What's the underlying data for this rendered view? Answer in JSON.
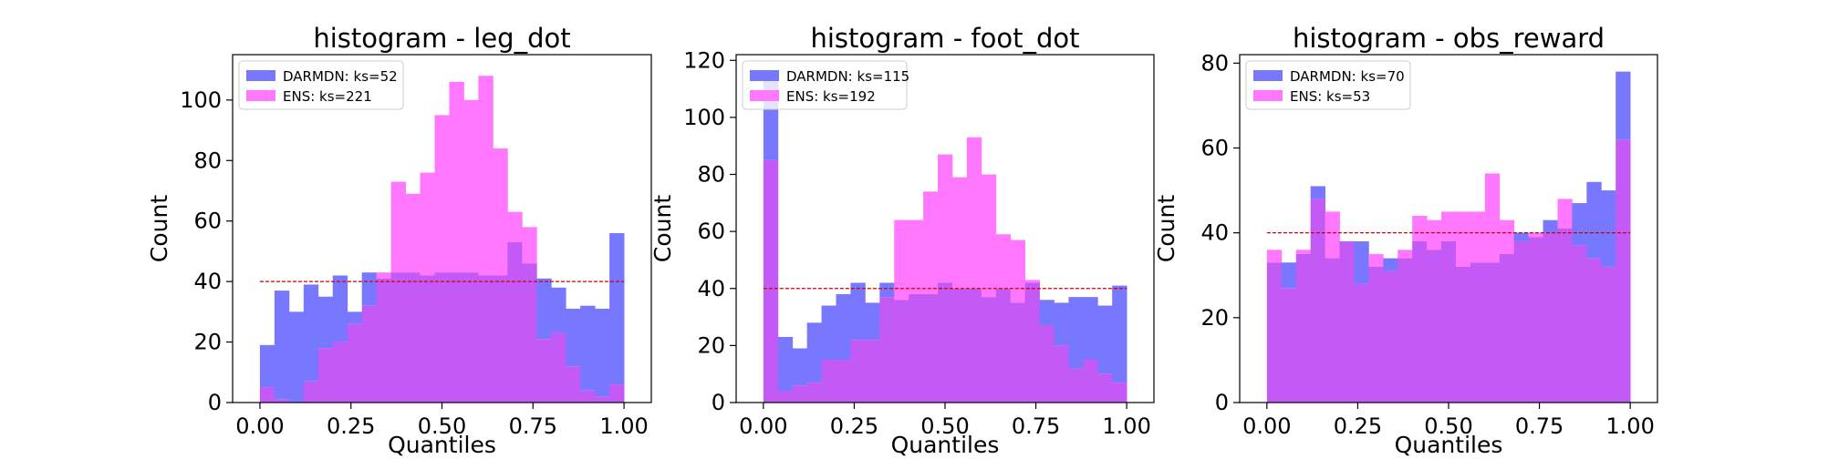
{
  "colors": {
    "darmdn": "#7878ff",
    "ens": "#ff78ff",
    "overlap": "#c35af5",
    "refline": "#cc0000"
  },
  "chart_data": [
    {
      "type": "bar",
      "title": "histogram - leg_dot",
      "xlabel": "Quantiles",
      "ylabel": "Count",
      "xlim": [
        -0.075,
        1.075
      ],
      "ylim": [
        0,
        115
      ],
      "xticks": [
        "0.00",
        "0.25",
        "0.50",
        "0.75",
        "1.00"
      ],
      "xtick_values": [
        0,
        0.25,
        0.5,
        0.75,
        1.0
      ],
      "yticks": [
        "0",
        "20",
        "40",
        "60",
        "80",
        "100"
      ],
      "ytick_values": [
        0,
        20,
        40,
        60,
        80,
        100
      ],
      "legend_position": "top-left",
      "bins": 25,
      "bin_range": [
        0,
        1
      ],
      "reference_line": 40,
      "series": [
        {
          "name": "DARMDN: ks=52",
          "values": [
            19,
            37,
            30,
            39,
            35,
            42,
            30,
            43,
            41,
            43,
            43,
            42,
            43,
            43,
            43,
            42,
            42,
            53,
            46,
            41,
            38,
            31,
            32,
            31,
            56
          ]
        },
        {
          "name": "ENS: ks=221",
          "values": [
            5,
            1,
            0,
            7,
            18,
            20,
            26,
            32,
            43,
            73,
            69,
            76,
            95,
            106,
            100,
            108,
            84,
            63,
            58,
            21,
            23,
            12,
            4,
            2,
            6
          ]
        }
      ]
    },
    {
      "type": "bar",
      "title": "histogram - foot_dot",
      "xlabel": "Quantiles",
      "ylabel": "Count",
      "xlim": [
        -0.075,
        1.075
      ],
      "ylim": [
        0,
        122
      ],
      "xticks": [
        "0.00",
        "0.25",
        "0.50",
        "0.75",
        "1.00"
      ],
      "xtick_values": [
        0,
        0.25,
        0.5,
        0.75,
        1.0
      ],
      "yticks": [
        "0",
        "20",
        "40",
        "60",
        "80",
        "100",
        "120"
      ],
      "ytick_values": [
        0,
        20,
        40,
        60,
        80,
        100,
        120
      ],
      "legend_position": "top-left",
      "bins": 25,
      "bin_range": [
        0,
        1
      ],
      "reference_line": 40,
      "series": [
        {
          "name": "DARMDN: ks=115",
          "values": [
            116,
            23,
            19,
            28,
            34,
            38,
            42,
            35,
            42,
            36,
            38,
            38,
            42,
            40,
            40,
            37,
            40,
            35,
            42,
            36,
            35,
            37,
            37,
            34,
            41
          ]
        },
        {
          "name": "ENS: ks=192",
          "values": [
            85,
            4,
            6,
            7,
            15,
            15,
            22,
            22,
            37,
            64,
            64,
            74,
            87,
            79,
            93,
            80,
            59,
            57,
            43,
            27,
            20,
            12,
            15,
            10,
            7
          ]
        }
      ]
    },
    {
      "type": "bar",
      "title": "histogram - obs_reward",
      "xlabel": "Quantiles",
      "ylabel": "Count",
      "xlim": [
        -0.075,
        1.075
      ],
      "ylim": [
        0,
        82
      ],
      "xticks": [
        "0.00",
        "0.25",
        "0.50",
        "0.75",
        "1.00"
      ],
      "xtick_values": [
        0,
        0.25,
        0.5,
        0.75,
        1.0
      ],
      "yticks": [
        "0",
        "20",
        "40",
        "60",
        "80"
      ],
      "ytick_values": [
        0,
        20,
        40,
        60,
        80
      ],
      "legend_position": "top-left",
      "bins": 25,
      "bin_range": [
        0,
        1
      ],
      "reference_line": 40,
      "series": [
        {
          "name": "DARMDN: ks=70",
          "values": [
            33,
            33,
            35,
            51,
            34,
            38,
            38,
            32,
            34,
            34,
            38,
            36,
            38,
            32,
            33,
            33,
            35,
            40,
            39,
            43,
            41,
            47,
            52,
            50,
            78
          ]
        },
        {
          "name": "ENS: ks=53",
          "values": [
            36,
            27,
            36,
            48,
            45,
            38,
            28,
            35,
            31,
            36,
            44,
            43,
            45,
            45,
            45,
            54,
            43,
            38,
            40,
            40,
            48,
            37,
            34,
            32,
            62
          ]
        }
      ]
    }
  ]
}
